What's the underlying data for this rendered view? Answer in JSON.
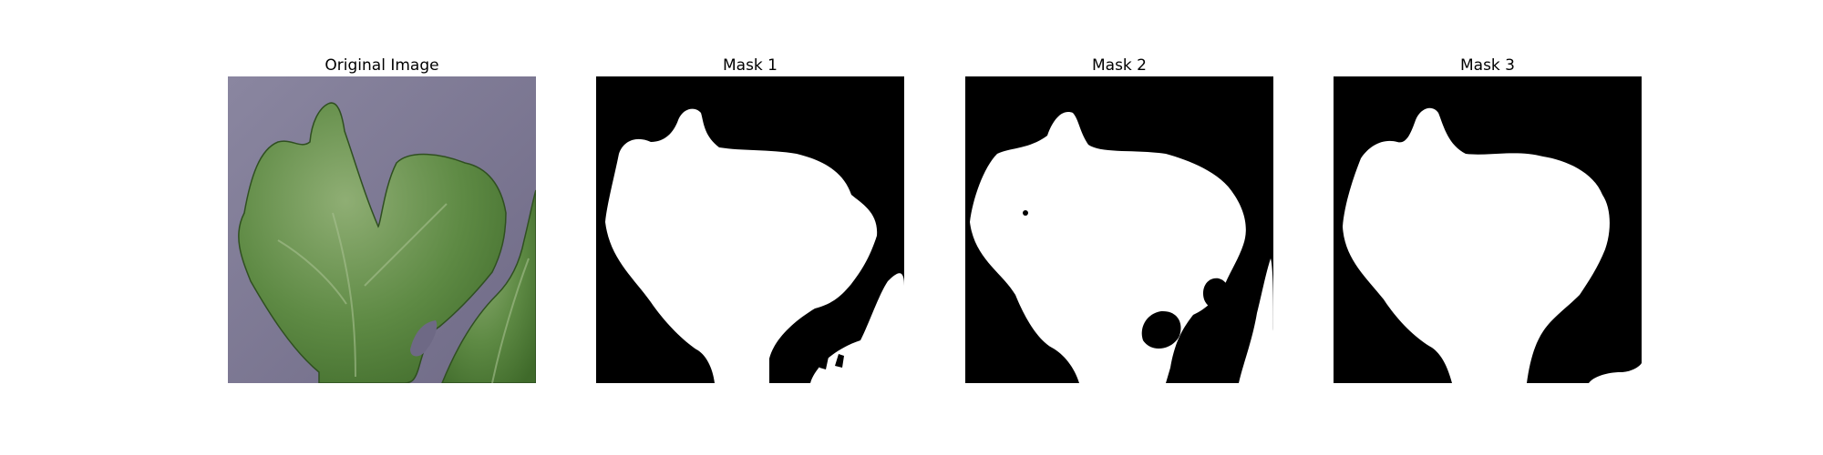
{
  "panels": [
    {
      "title": "Original Image"
    },
    {
      "title": "Mask 1"
    },
    {
      "title": "Mask 2"
    },
    {
      "title": "Mask 3"
    }
  ],
  "colors": {
    "background": "#ffffff",
    "photo_background": "#7d7893",
    "leaf_dark": "#4f7a35",
    "leaf_light": "#7fa062",
    "mask_foreground": "#ffffff",
    "mask_background": "#000000"
  }
}
